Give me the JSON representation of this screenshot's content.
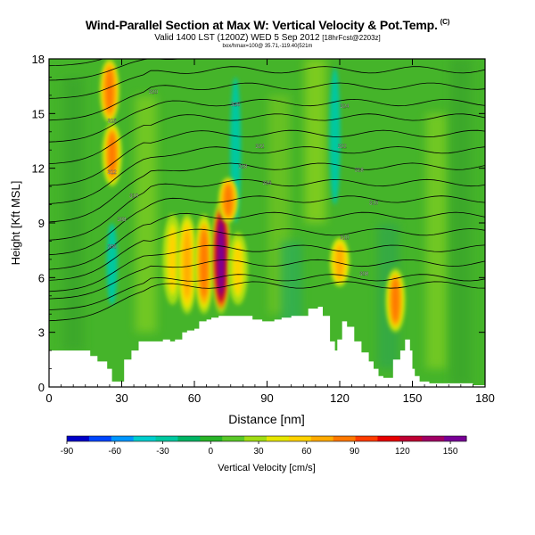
{
  "header": {
    "title": "Wind-Parallel Section at Max W: Vertical Velocity & Pot.Temp.",
    "copyright": "(C)",
    "valid_prefix": "Valid 1400 LST (1200Z) WED 5 Sep 2012",
    "valid_suffix": "[18hrFcst@2203z]",
    "info": "box/hmax=100@ 35.71,-119.40(521m"
  },
  "chart_data": {
    "type": "heatmap",
    "title": "Wind-Parallel Section at Max W: Vertical Velocity & Pot.Temp.",
    "xlabel": "Distance [nm]",
    "ylabel": "Height [Kft MSL]",
    "xlim": [
      0,
      180
    ],
    "ylim": [
      0,
      18
    ],
    "xticks": [
      "0",
      "30",
      "60",
      "90",
      "120",
      "150",
      "180"
    ],
    "yticks": [
      "0",
      "3",
      "6",
      "9",
      "12",
      "15",
      "18"
    ],
    "colorbar": {
      "label": "Vertical Velocity [cm/s]",
      "range": [
        -90,
        160
      ],
      "ticks": [
        "-90",
        "-60",
        "-30",
        "0",
        "30",
        "60",
        "90",
        "120",
        "150"
      ],
      "colors": [
        "#0000c8",
        "#0046ff",
        "#0096ff",
        "#00cdcd",
        "#00c8a0",
        "#00b464",
        "#28b428",
        "#5ac828",
        "#a0dc14",
        "#e6e600",
        "#ffd200",
        "#ffaa00",
        "#ff7800",
        "#ff3c00",
        "#e60000",
        "#be0032",
        "#a00064",
        "#780096"
      ]
    },
    "updrafts": [
      {
        "x": 25,
        "ymin": 14.5,
        "ymax": 18,
        "value": 90
      },
      {
        "x": 26,
        "ymin": 11,
        "ymax": 14.5,
        "value": 80
      },
      {
        "x": 51,
        "ymin": 4.5,
        "ymax": 9.5,
        "value": 60
      },
      {
        "x": 57,
        "ymin": 4,
        "ymax": 9.5,
        "value": 70
      },
      {
        "x": 64,
        "ymin": 4,
        "ymax": 9.5,
        "value": 80
      },
      {
        "x": 71,
        "ymin": 4,
        "ymax": 10.2,
        "value": 150
      },
      {
        "x": 74,
        "ymin": 9,
        "ymax": 11.5,
        "value": 90
      },
      {
        "x": 78,
        "ymin": 4.5,
        "ymax": 8.5,
        "value": 50
      },
      {
        "x": 120,
        "ymin": 5.5,
        "ymax": 8.2,
        "value": 70
      },
      {
        "x": 143,
        "ymin": 3,
        "ymax": 6.5,
        "value": 80
      }
    ],
    "downdrafts": [
      {
        "x": 26,
        "ymin": 4.5,
        "ymax": 9,
        "value": -30
      },
      {
        "x": 77,
        "ymin": 9,
        "ymax": 17,
        "value": -30
      },
      {
        "x": 118,
        "ymin": 10,
        "ymax": 17.5,
        "value": -30
      }
    ],
    "terrain": [
      [
        0,
        2
      ],
      [
        13,
        2
      ],
      [
        17,
        1.7
      ],
      [
        20,
        1.4
      ],
      [
        24,
        1
      ],
      [
        26,
        0.3
      ],
      [
        29,
        0.3
      ],
      [
        31,
        1.5
      ],
      [
        34,
        2
      ],
      [
        37,
        2.5
      ],
      [
        42,
        2.5
      ],
      [
        47,
        2.6
      ],
      [
        50,
        2.5
      ],
      [
        52,
        2.6
      ],
      [
        55,
        3
      ],
      [
        57,
        3.1
      ],
      [
        60,
        3.2
      ],
      [
        62,
        3.6
      ],
      [
        65,
        3.7
      ],
      [
        67,
        3.8
      ],
      [
        70,
        3.9
      ],
      [
        74,
        3.9
      ],
      [
        80,
        3.9
      ],
      [
        84,
        3.7
      ],
      [
        88,
        3.6
      ],
      [
        93,
        3.7
      ],
      [
        96,
        3.8
      ],
      [
        100,
        3.9
      ],
      [
        105,
        3.9
      ],
      [
        107,
        4.3
      ],
      [
        111,
        4.4
      ],
      [
        113,
        3.9
      ],
      [
        116,
        2.5
      ],
      [
        118,
        2
      ],
      [
        119,
        2.6
      ],
      [
        121,
        3.6
      ],
      [
        123,
        3.3
      ],
      [
        126,
        2.5
      ],
      [
        129,
        1.9
      ],
      [
        132,
        1.4
      ],
      [
        134,
        1
      ],
      [
        136,
        0.6
      ],
      [
        138,
        0.5
      ],
      [
        140,
        0.5
      ],
      [
        142,
        1.5
      ],
      [
        145,
        2
      ],
      [
        147,
        2.6
      ],
      [
        149,
        2
      ],
      [
        150,
        1
      ],
      [
        151,
        0.6
      ],
      [
        153,
        0.3
      ],
      [
        157,
        0.2
      ],
      [
        175,
        0.1
      ],
      [
        180,
        0
      ]
    ],
    "isentropes": {
      "upwind_levels": [
        3.6,
        4.2,
        4.8,
        5.2,
        5.8,
        6.4,
        7.2,
        8.0,
        9.0,
        10.0,
        11.0,
        12.2,
        13.4,
        14.6,
        15.8,
        16.8,
        17.6
      ],
      "downwind_levels": [
        5.6,
        6.0,
        6.8,
        7.6,
        8.5,
        9.4,
        10.3,
        11.2,
        12.1,
        13.0,
        13.9,
        14.8,
        15.6,
        16.5,
        17.4,
        18.2,
        18.9
      ]
    },
    "contour_labels": [
      {
        "x": 43,
        "y": 16.2,
        "text": "320"
      },
      {
        "x": 26,
        "y": 14.6,
        "text": "316"
      },
      {
        "x": 26,
        "y": 11.8,
        "text": "312"
      },
      {
        "x": 35,
        "y": 10.5,
        "text": "310"
      },
      {
        "x": 30,
        "y": 9.2,
        "text": "308"
      },
      {
        "x": 26,
        "y": 7.7,
        "text": "306"
      },
      {
        "x": 77,
        "y": 15.5,
        "text": "326"
      },
      {
        "x": 87,
        "y": 13.2,
        "text": "322"
      },
      {
        "x": 80,
        "y": 12.1,
        "text": "318"
      },
      {
        "x": 90,
        "y": 11.2,
        "text": "316"
      },
      {
        "x": 122,
        "y": 15.4,
        "text": "324"
      },
      {
        "x": 121,
        "y": 13.2,
        "text": "322"
      },
      {
        "x": 128,
        "y": 11.9,
        "text": "318"
      },
      {
        "x": 134,
        "y": 10.1,
        "text": "316"
      },
      {
        "x": 122,
        "y": 8.2,
        "text": "310"
      },
      {
        "x": 130,
        "y": 6.2,
        "text": "308"
      }
    ]
  }
}
